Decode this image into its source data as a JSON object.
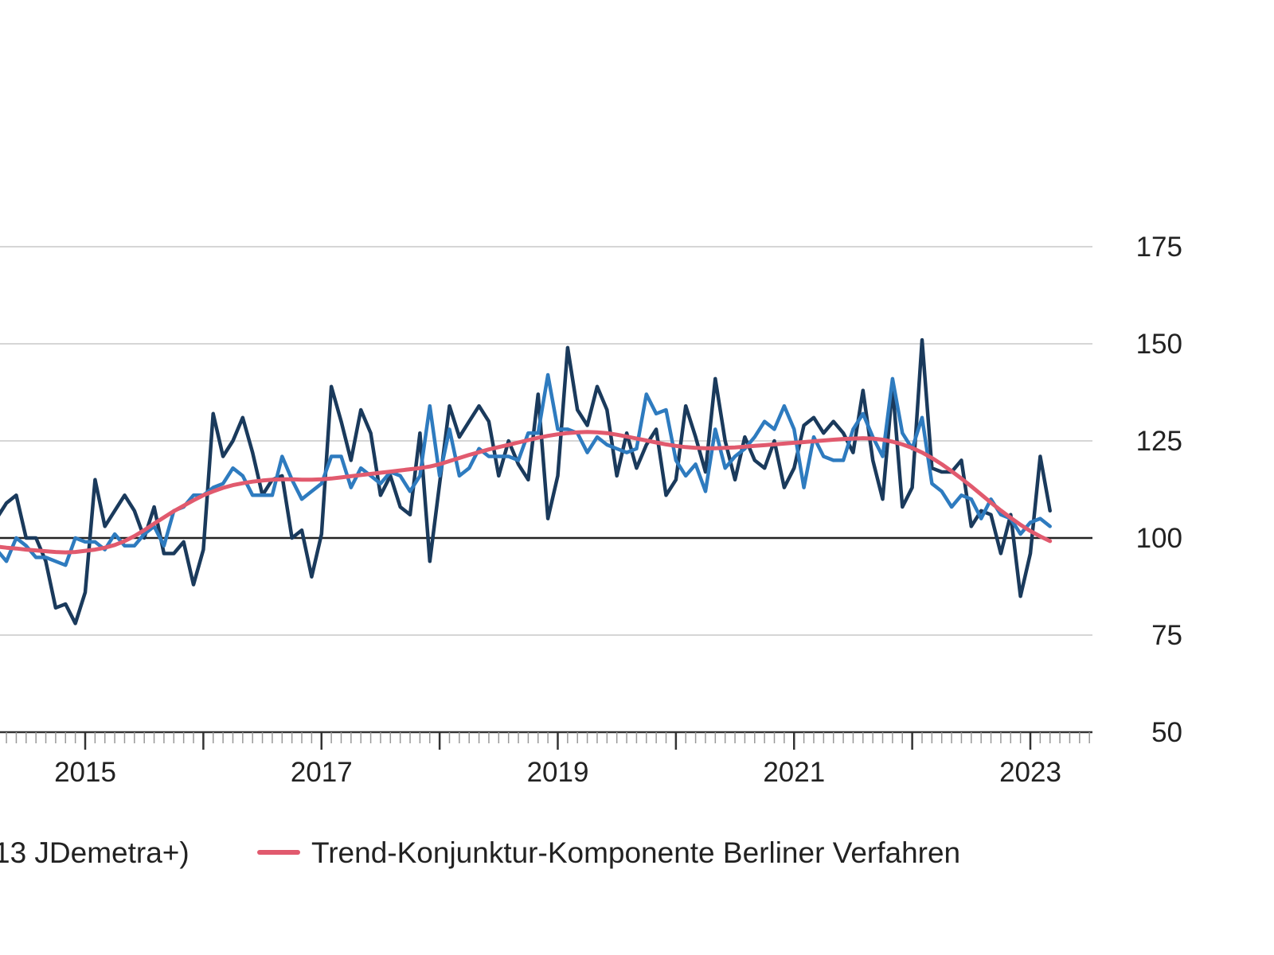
{
  "chart_data": {
    "type": "line",
    "x_start": "2014-03",
    "x_end": "2023-05",
    "ylim": [
      50,
      175
    ],
    "yticks": [
      50,
      75,
      100,
      125,
      150,
      175
    ],
    "reference_line": 100,
    "xticks": [
      "2015",
      "2017",
      "2019",
      "2021",
      "2023"
    ],
    "grid": "horizontal",
    "legend_placement": "bottom",
    "series": [
      {
        "name": "",
        "color": "#1a3a5c",
        "values": [
          111,
          105,
          109,
          111,
          100,
          100,
          94,
          82,
          83,
          78,
          86,
          115,
          103,
          107,
          111,
          107,
          100,
          108,
          96,
          96,
          99,
          88,
          97,
          132,
          121,
          125,
          131,
          122,
          111,
          115,
          116,
          100,
          102,
          90,
          101,
          139,
          130,
          120,
          133,
          127,
          111,
          116,
          108,
          106,
          127,
          94,
          114,
          134,
          126,
          130,
          134,
          130,
          116,
          125,
          119,
          115,
          137,
          105,
          116,
          149,
          133,
          129,
          139,
          133,
          116,
          127,
          118,
          124,
          128,
          111,
          115,
          134,
          126,
          117,
          141,
          125,
          115,
          126,
          120,
          118,
          125,
          113,
          118,
          129,
          131,
          127,
          130,
          127,
          122,
          138,
          120,
          110,
          139,
          108,
          113,
          151,
          118,
          117,
          117,
          120,
          103,
          107,
          106,
          96,
          106,
          85,
          96,
          121,
          107
        ]
      },
      {
        "name": "",
        "color": "#2e7bbf",
        "values": [
          101,
          97,
          94,
          100,
          98,
          95,
          95,
          94,
          93,
          100,
          99,
          99,
          97,
          101,
          98,
          98,
          101,
          103,
          98,
          107,
          108,
          111,
          111,
          113,
          114,
          118,
          116,
          111,
          111,
          111,
          121,
          115,
          110,
          112,
          114,
          121,
          121,
          113,
          118,
          116,
          114,
          117,
          116,
          112,
          116,
          134,
          116,
          128,
          116,
          118,
          123,
          121,
          121,
          121,
          120,
          127,
          127,
          142,
          128,
          128,
          127,
          122,
          126,
          124,
          123,
          122,
          123,
          137,
          132,
          133,
          120,
          116,
          119,
          112,
          128,
          118,
          121,
          123,
          126,
          130,
          128,
          134,
          128,
          113,
          126,
          121,
          120,
          120,
          128,
          132,
          126,
          121,
          141,
          127,
          123,
          131,
          114,
          112,
          108,
          111,
          110,
          105,
          110,
          106,
          105,
          101,
          104,
          105,
          103
        ]
      },
      {
        "name": "Trend-Konjunktur-Komponente Berliner Verfahren",
        "color": "#e15a6e",
        "values": [
          98,
          97.8,
          97.5,
          97.3,
          97,
          96.8,
          96.6,
          96.4,
          96.3,
          96.4,
          96.7,
          97,
          97.5,
          98.2,
          99.2,
          100.5,
          102,
          103.7,
          105.3,
          106.9,
          108.3,
          109.7,
          111,
          112,
          112.9,
          113.6,
          114.1,
          114.5,
          114.8,
          115,
          115.1,
          115.1,
          115,
          115,
          115.1,
          115.3,
          115.6,
          115.9,
          116.2,
          116.5,
          116.8,
          117.1,
          117.4,
          117.7,
          118,
          118.4,
          119,
          119.8,
          120.6,
          121.4,
          122.1,
          122.8,
          123.4,
          124,
          124.6,
          125.2,
          125.8,
          126.3,
          126.7,
          127,
          127.2,
          127.3,
          127.2,
          127,
          126.6,
          126.1,
          125.6,
          125.1,
          124.6,
          124.1,
          123.7,
          123.4,
          123.2,
          123.1,
          123.1,
          123.2,
          123.3,
          123.5,
          123.7,
          123.9,
          124.1,
          124.3,
          124.5,
          124.7,
          124.9,
          125.1,
          125.3,
          125.5,
          125.6,
          125.7,
          125.6,
          125.3,
          124.8,
          124.1,
          123.2,
          122,
          120.6,
          119,
          117.2,
          115.3,
          113.3,
          111.2,
          109.1,
          107.1,
          105.2,
          103.4,
          101.8,
          100.4,
          99.2
        ]
      }
    ],
    "legend": [
      {
        "label": "13 JDemetra+)",
        "swatch": false
      },
      {
        "label": "Trend-Konjunktur-Komponente Berliner Verfahren",
        "swatch": true,
        "color": "#e15a6e"
      }
    ]
  }
}
